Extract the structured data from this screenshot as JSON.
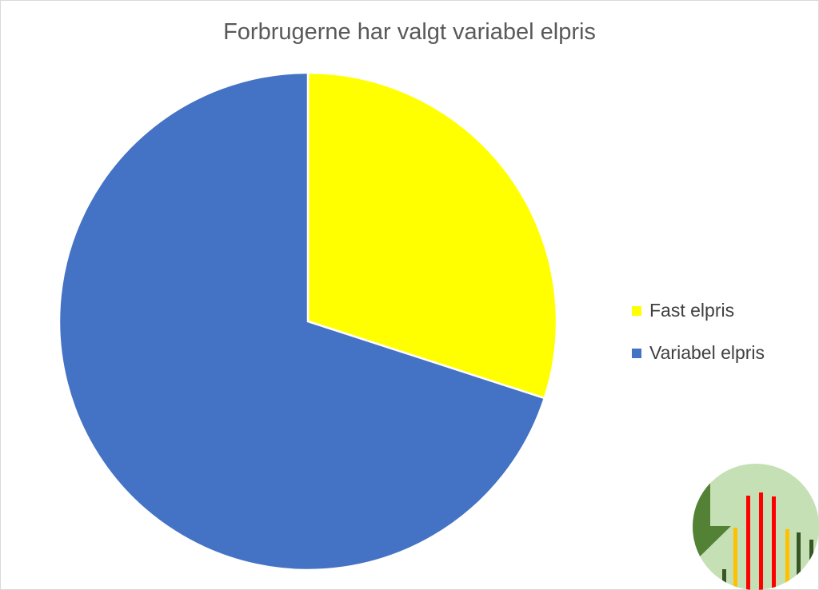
{
  "chart_data": {
    "type": "pie",
    "title": "Forbrugerne har valgt variabel elpris",
    "categories": [
      "Fast elpris",
      "Variabel elpris"
    ],
    "values": [
      30,
      70
    ],
    "unit": "percent",
    "colors": [
      "#FFFF00",
      "#4472C4"
    ],
    "start_angle": "top, clockwise",
    "legend_position": "right"
  },
  "logo": {
    "icon": "bar-chart-logo-icon",
    "colors": [
      "#C5E0B4",
      "#538135",
      "#FF0000",
      "#FFC000",
      "#375623"
    ]
  }
}
